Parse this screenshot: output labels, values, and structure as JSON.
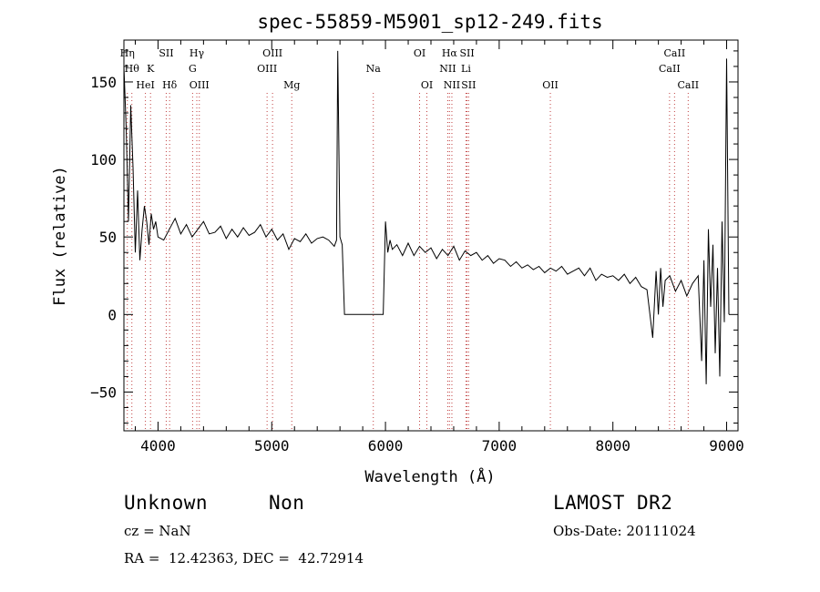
{
  "chart_data": {
    "type": "line",
    "title": "spec-55859-M5901_sp12-249.fits",
    "xlabel": "Wavelength (Å)",
    "ylabel": "Flux (relative)",
    "xlim": [
      3700,
      9100
    ],
    "ylim": [
      -75,
      177
    ],
    "xticks": [
      4000,
      5000,
      6000,
      7000,
      8000,
      9000
    ],
    "yticks": [
      -50,
      0,
      50,
      100,
      150
    ],
    "grid": false,
    "series": [
      {
        "x": [
          3700,
          3720,
          3740,
          3760,
          3780,
          3800,
          3820,
          3840,
          3860,
          3880,
          3900,
          3920,
          3940,
          3960,
          3980,
          4000,
          4050,
          4100,
          4150,
          4200,
          4250,
          4300,
          4350,
          4400,
          4450,
          4500,
          4550,
          4600,
          4650,
          4700,
          4750,
          4800,
          4850,
          4900,
          4950,
          5000,
          5050,
          5100,
          5150,
          5200,
          5250,
          5300,
          5350,
          5400,
          5450,
          5500,
          5550,
          5570,
          5580,
          5600,
          5620,
          5640,
          5660,
          5680,
          5700,
          5800,
          5900,
          5960,
          5980,
          6000,
          6020,
          6040,
          6060,
          6100,
          6150,
          6200,
          6250,
          6300,
          6350,
          6400,
          6450,
          6500,
          6550,
          6600,
          6650,
          6700,
          6750,
          6800,
          6850,
          6900,
          6950,
          7000,
          7050,
          7100,
          7150,
          7200,
          7250,
          7300,
          7350,
          7400,
          7450,
          7500,
          7550,
          7600,
          7650,
          7700,
          7750,
          7800,
          7850,
          7900,
          7950,
          8000,
          8050,
          8100,
          8150,
          8200,
          8250,
          8300,
          8350,
          8380,
          8400,
          8420,
          8440,
          8460,
          8500,
          8550,
          8600,
          8650,
          8700,
          8750,
          8780,
          8800,
          8820,
          8840,
          8860,
          8880,
          8900,
          8920,
          8940,
          8960,
          8980,
          9000,
          9020
        ],
        "y": [
          160,
          120,
          60,
          135,
          95,
          40,
          80,
          35,
          55,
          70,
          60,
          45,
          65,
          55,
          60,
          50,
          48,
          55,
          62,
          52,
          58,
          50,
          55,
          60,
          52,
          53,
          57,
          49,
          55,
          50,
          56,
          51,
          53,
          58,
          50,
          55,
          48,
          52,
          42,
          49,
          47,
          52,
          46,
          49,
          50,
          48,
          44,
          48,
          170,
          50,
          45,
          0,
          0,
          0,
          0,
          0,
          0,
          0,
          0,
          60,
          40,
          48,
          42,
          45,
          38,
          46,
          38,
          44,
          40,
          43,
          36,
          42,
          38,
          44,
          35,
          41,
          38,
          40,
          35,
          38,
          33,
          36,
          35,
          31,
          34,
          30,
          32,
          29,
          31,
          27,
          30,
          28,
          31,
          26,
          28,
          30,
          25,
          30,
          22,
          26,
          24,
          25,
          22,
          26,
          20,
          24,
          18,
          16,
          -15,
          28,
          0,
          30,
          5,
          22,
          25,
          15,
          22,
          12,
          20,
          25,
          -30,
          35,
          -45,
          55,
          5,
          45,
          -25,
          30,
          -40,
          60,
          -5,
          165,
          0
        ]
      }
    ],
    "line_labels": [
      {
        "x": 3730,
        "row": 0,
        "text": "Hη"
      },
      {
        "x": 3770,
        "row": 1,
        "text": "Hθ"
      },
      {
        "x": 3889,
        "row": 2,
        "text": "HeI"
      },
      {
        "x": 3934,
        "row": 1,
        "text": "K"
      },
      {
        "x": 4072,
        "row": 0,
        "text": "SII"
      },
      {
        "x": 4102,
        "row": 2,
        "text": "Hδ"
      },
      {
        "x": 4304,
        "row": 1,
        "text": "G"
      },
      {
        "x": 4341,
        "row": 0,
        "text": "Hγ"
      },
      {
        "x": 4363,
        "row": 2,
        "text": "OIII"
      },
      {
        "x": 4959,
        "row": 1,
        "text": "OIII"
      },
      {
        "x": 5007,
        "row": 0,
        "text": "OIII"
      },
      {
        "x": 5176,
        "row": 2,
        "text": "Mg"
      },
      {
        "x": 5893,
        "row": 1,
        "text": "Na"
      },
      {
        "x": 6300,
        "row": 0,
        "text": "OI"
      },
      {
        "x": 6364,
        "row": 2,
        "text": "OI"
      },
      {
        "x": 6548,
        "row": 1,
        "text": "NII"
      },
      {
        "x": 6563,
        "row": 0,
        "text": "Hα"
      },
      {
        "x": 6584,
        "row": 2,
        "text": "NII"
      },
      {
        "x": 6708,
        "row": 1,
        "text": "Li"
      },
      {
        "x": 6717,
        "row": 0,
        "text": "SII"
      },
      {
        "x": 6731,
        "row": 2,
        "text": "SII"
      },
      {
        "x": 7450,
        "row": 2,
        "text": "OII"
      },
      {
        "x": 8498,
        "row": 1,
        "text": "CaII"
      },
      {
        "x": 8542,
        "row": 0,
        "text": "CaII"
      },
      {
        "x": 8662,
        "row": 2,
        "text": "CaII"
      }
    ]
  },
  "footer": {
    "class_text": "Unknown",
    "subclass_text": "Non",
    "survey_text": "LAMOST DR2",
    "cz_text": "cz = NaN",
    "obs_date_text": "Obs-Date: 20111024",
    "radec_text": "RA =  12.42363, DEC =  42.72914"
  }
}
